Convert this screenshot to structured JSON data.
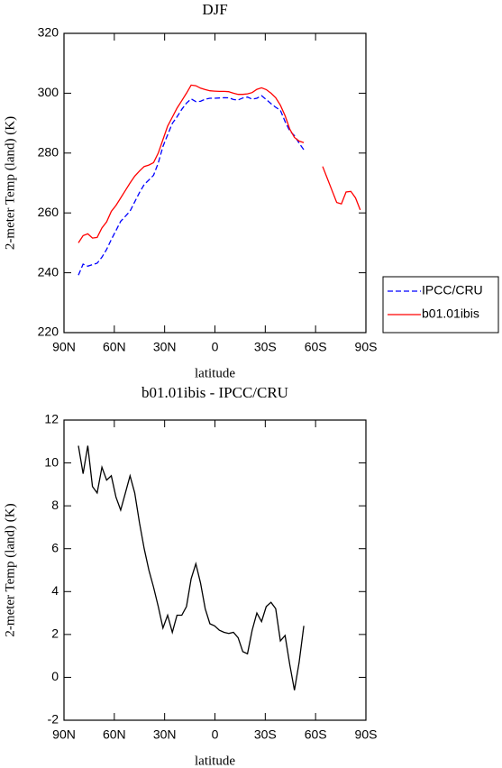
{
  "chart_data": [
    {
      "type": "line",
      "title": "DJF",
      "xlabel": "latitude",
      "ylabel": "2-meter Temp (land) (K)",
      "xlim": [
        90,
        -90
      ],
      "xticks": [
        {
          "value": 90,
          "label": "90N"
        },
        {
          "value": 60,
          "label": "60N"
        },
        {
          "value": 30,
          "label": "30N"
        },
        0,
        {
          "value": -30,
          "label": "30S"
        },
        {
          "value": -60,
          "label": "60S"
        },
        {
          "value": -90,
          "label": "90S"
        }
      ],
      "ylim": [
        220,
        320
      ],
      "yticks": [
        220,
        240,
        260,
        280,
        300,
        320
      ],
      "legend": "right",
      "x": [
        81.4,
        78.6,
        75.8,
        73,
        70.2,
        67.4,
        64.6,
        61.8,
        59,
        56.2,
        53.4,
        50.6,
        47.8,
        45,
        42.2,
        39.4,
        36.6,
        33.8,
        31,
        28.2,
        25.4,
        22.6,
        19.8,
        17,
        14.2,
        11.4,
        8.6,
        5.8,
        3,
        0.2,
        -2.6,
        -5.4,
        -8.2,
        -11,
        -13.8,
        -16.6,
        -19.4,
        -22.2,
        -25,
        -27.8,
        -30.6,
        -33.4,
        -36.2,
        -39,
        -41.8,
        -44.6,
        -47.4,
        -50.2,
        -53,
        -55.8,
        -58.6,
        -61.4,
        -64.2,
        -67,
        -69.8,
        -72.6,
        -75.4,
        -78.2,
        -81,
        -83.8,
        -86.6
      ],
      "series": [
        {
          "name": "IPCC/CRU",
          "color": "#0000ff",
          "dash": true,
          "values": [
            239.2,
            242.9,
            242.2,
            242.7,
            243.2,
            245.2,
            247.8,
            251.1,
            254.1,
            257.2,
            258.9,
            260.6,
            263.7,
            266.8,
            269.5,
            271,
            272.6,
            276.7,
            282.2,
            286.1,
            289.9,
            292.1,
            294.6,
            296.7,
            298.1,
            297.2,
            297.3,
            298,
            298.3,
            298.3,
            298.4,
            298.5,
            298.45,
            297.9,
            297.75,
            298.4,
            298.7,
            298,
            298.3,
            299.2,
            297.9,
            296.5,
            295.3,
            294.3,
            290.55,
            287.4,
            285.8,
            283.3,
            281.1,
            null,
            null,
            null,
            null,
            null,
            null,
            null,
            null,
            null,
            null,
            null,
            null
          ]
        },
        {
          "name": "b01.01ibis",
          "color": "#ff0000",
          "values": [
            250,
            252.4,
            253,
            251.6,
            251.8,
            255,
            257,
            260.5,
            262.5,
            265,
            267.5,
            270,
            272.3,
            274,
            275.5,
            276,
            276.8,
            280,
            284.5,
            289,
            292,
            295,
            297.5,
            300,
            302.7,
            302.5,
            301.7,
            301.2,
            300.8,
            300.7,
            300.6,
            300.6,
            300.5,
            300,
            299.6,
            299.6,
            299.8,
            300.2,
            301.3,
            301.8,
            301.2,
            300,
            298.5,
            296,
            292.5,
            288,
            285.2,
            284,
            283.5,
            null,
            null,
            null,
            275.5,
            271.5,
            267.5,
            263.5,
            263,
            267,
            267.2,
            265,
            261
          ]
        }
      ]
    },
    {
      "type": "line",
      "title": "b01.01ibis - IPCC/CRU",
      "xlabel": "latitude",
      "ylabel": "2-meter Temp (land) (K)",
      "xlim": [
        90,
        -90
      ],
      "xticks": [
        {
          "value": 90,
          "label": "90N"
        },
        {
          "value": 60,
          "label": "60N"
        },
        {
          "value": 30,
          "label": "30N"
        },
        0,
        {
          "value": -30,
          "label": "30S"
        },
        {
          "value": -60,
          "label": "60S"
        },
        {
          "value": -90,
          "label": "90S"
        }
      ],
      "ylim": [
        -2,
        12
      ],
      "yticks": [
        -2,
        0,
        2,
        4,
        6,
        8,
        10,
        12
      ],
      "x": [
        81.4,
        78.6,
        75.8,
        73,
        70.2,
        67.4,
        64.6,
        61.8,
        59,
        56.2,
        53.4,
        50.6,
        47.8,
        45,
        42.2,
        39.4,
        36.6,
        33.8,
        31,
        28.2,
        25.4,
        22.6,
        19.8,
        17,
        14.2,
        11.4,
        8.6,
        5.8,
        3,
        0.2,
        -2.6,
        -5.4,
        -8.2,
        -11,
        -13.8,
        -16.6,
        -19.4,
        -22.2,
        -25,
        -27.8,
        -30.6,
        -33.4,
        -36.2,
        -39,
        -41.8,
        -44.6,
        -47.4,
        -50.2,
        -53
      ],
      "series": [
        {
          "color": "#000000",
          "values": [
            10.8,
            9.5,
            10.8,
            8.9,
            8.6,
            9.8,
            9.2,
            9.4,
            8.4,
            7.8,
            8.6,
            9.4,
            8.6,
            7.2,
            6,
            5,
            4.2,
            3.3,
            2.3,
            2.9,
            2.1,
            2.9,
            2.9,
            3.3,
            4.6,
            5.3,
            4.4,
            3.2,
            2.5,
            2.4,
            2.2,
            2.1,
            2.05,
            2.1,
            1.85,
            1.2,
            1.1,
            2.2,
            3,
            2.6,
            3.3,
            3.5,
            3.2,
            1.7,
            1.95,
            0.6,
            -0.6,
            0.7,
            2.4
          ]
        }
      ]
    }
  ]
}
